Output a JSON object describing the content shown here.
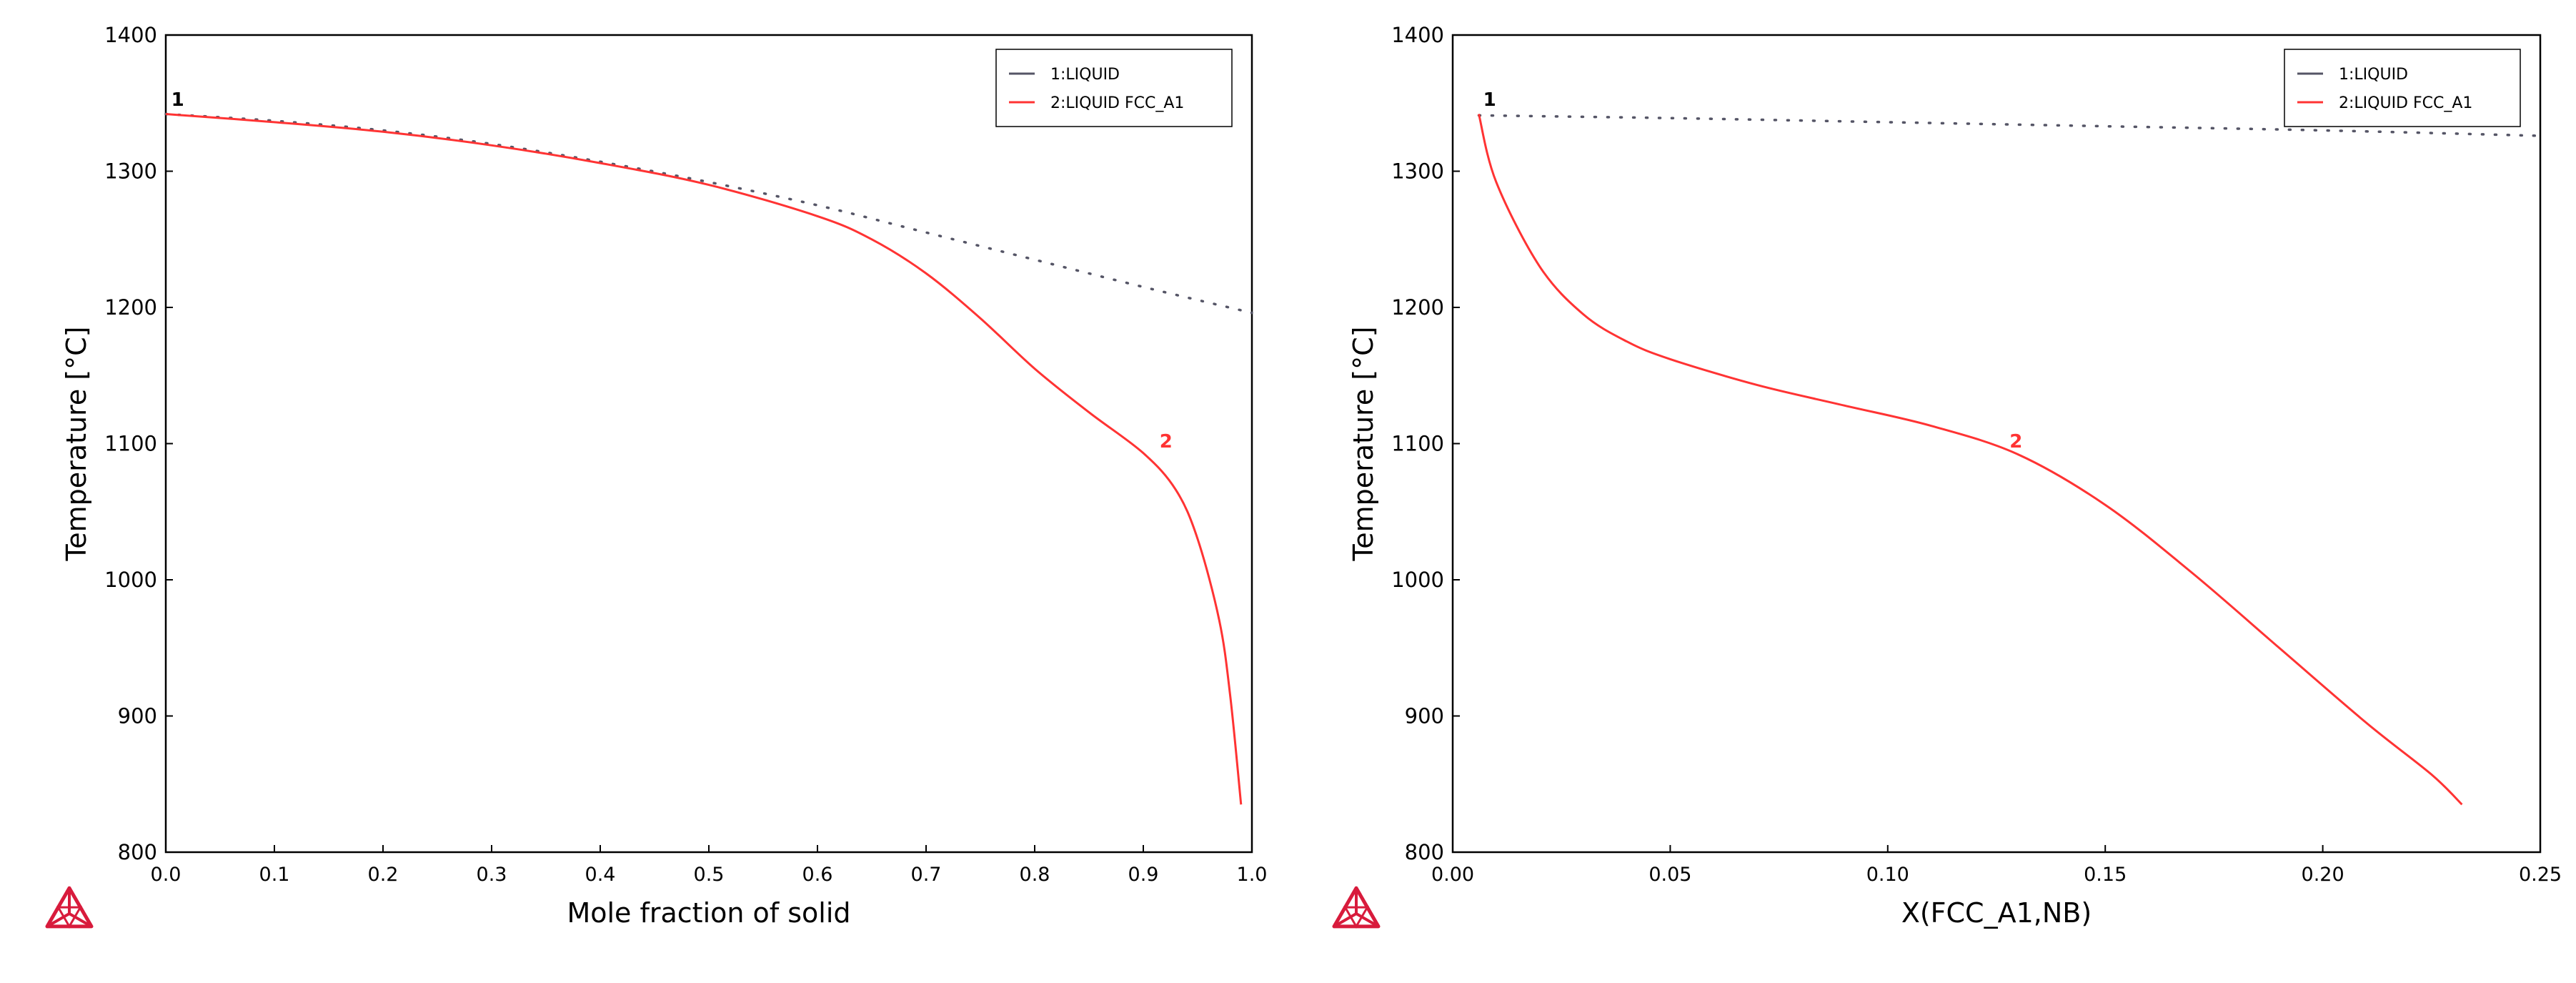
{
  "colors": {
    "series_liquid": "#555566",
    "series_liquid_fcc": "#ff3333",
    "axis": "#000000",
    "logo": "#d81b3c"
  },
  "icons": [
    "thermo-calc-logo-icon"
  ],
  "chart_data": [
    {
      "type": "line",
      "xlabel": "Mole fraction of solid",
      "ylabel": "Temperature [°C]",
      "xlim": [
        0,
        1.0
      ],
      "ylim": [
        800,
        1400
      ],
      "x_ticks": [
        "0.0",
        "0.1",
        "0.2",
        "0.3",
        "0.4",
        "0.5",
        "0.6",
        "0.7",
        "0.8",
        "0.9",
        "1.0"
      ],
      "y_ticks": [
        "800",
        "900",
        "1000",
        "1100",
        "1200",
        "1300",
        "1400"
      ],
      "grid": false,
      "legend_position": "top-right",
      "series": [
        {
          "name": "1:LIQUID",
          "color": "#555566",
          "style": "dotted",
          "x": [
            0.0,
            0.1,
            0.2,
            0.3,
            0.4,
            0.5,
            0.6,
            0.7,
            0.8,
            0.9,
            1.0
          ],
          "y": [
            1342,
            1337,
            1330,
            1320,
            1307,
            1292,
            1275,
            1255,
            1235,
            1215,
            1196
          ]
        },
        {
          "name": "2:LIQUID FCC_A1",
          "color": "#ff3333",
          "style": "solid",
          "x": [
            0.0,
            0.1,
            0.2,
            0.3,
            0.4,
            0.5,
            0.6,
            0.65,
            0.7,
            0.75,
            0.8,
            0.85,
            0.9,
            0.93,
            0.95,
            0.97,
            0.98,
            0.99
          ],
          "y": [
            1342,
            1336,
            1329,
            1319,
            1306,
            1290,
            1267,
            1250,
            1225,
            1192,
            1155,
            1123,
            1093,
            1066,
            1030,
            970,
            915,
            835
          ]
        }
      ],
      "annotations": [
        {
          "text": "1",
          "x": 0.005,
          "y": 1348,
          "color": "#000000"
        },
        {
          "text": "2",
          "x": 0.915,
          "y": 1097,
          "color": "#ff3333"
        }
      ]
    },
    {
      "type": "line",
      "xlabel": "X(FCC_A1,NB)",
      "ylabel": "Temperature [°C]",
      "xlim": [
        0,
        0.25
      ],
      "ylim": [
        800,
        1400
      ],
      "x_ticks": [
        "0.00",
        "0.05",
        "0.10",
        "0.15",
        "0.20",
        "0.25"
      ],
      "y_ticks": [
        "800",
        "900",
        "1000",
        "1100",
        "1200",
        "1300",
        "1400"
      ],
      "grid": false,
      "legend_position": "top-right",
      "series": [
        {
          "name": "1:LIQUID",
          "color": "#555566",
          "style": "dotted",
          "x": [
            0.006,
            0.05,
            0.1,
            0.15,
            0.2,
            0.25
          ],
          "y": [
            1341,
            1339,
            1336,
            1333,
            1330,
            1326
          ]
        },
        {
          "name": "2:LIQUID FCC_A1",
          "color": "#ff3333",
          "style": "solid",
          "x": [
            0.006,
            0.01,
            0.02,
            0.03,
            0.04,
            0.05,
            0.07,
            0.09,
            0.11,
            0.13,
            0.15,
            0.17,
            0.19,
            0.21,
            0.225,
            0.232
          ],
          "y": [
            1342,
            1292,
            1230,
            1195,
            1175,
            1162,
            1143,
            1128,
            1113,
            1092,
            1055,
            1005,
            950,
            895,
            857,
            835
          ]
        }
      ],
      "annotations": [
        {
          "text": "1",
          "x": 0.007,
          "y": 1348,
          "color": "#000000"
        },
        {
          "text": "2",
          "x": 0.128,
          "y": 1097,
          "color": "#ff3333"
        }
      ]
    }
  ]
}
